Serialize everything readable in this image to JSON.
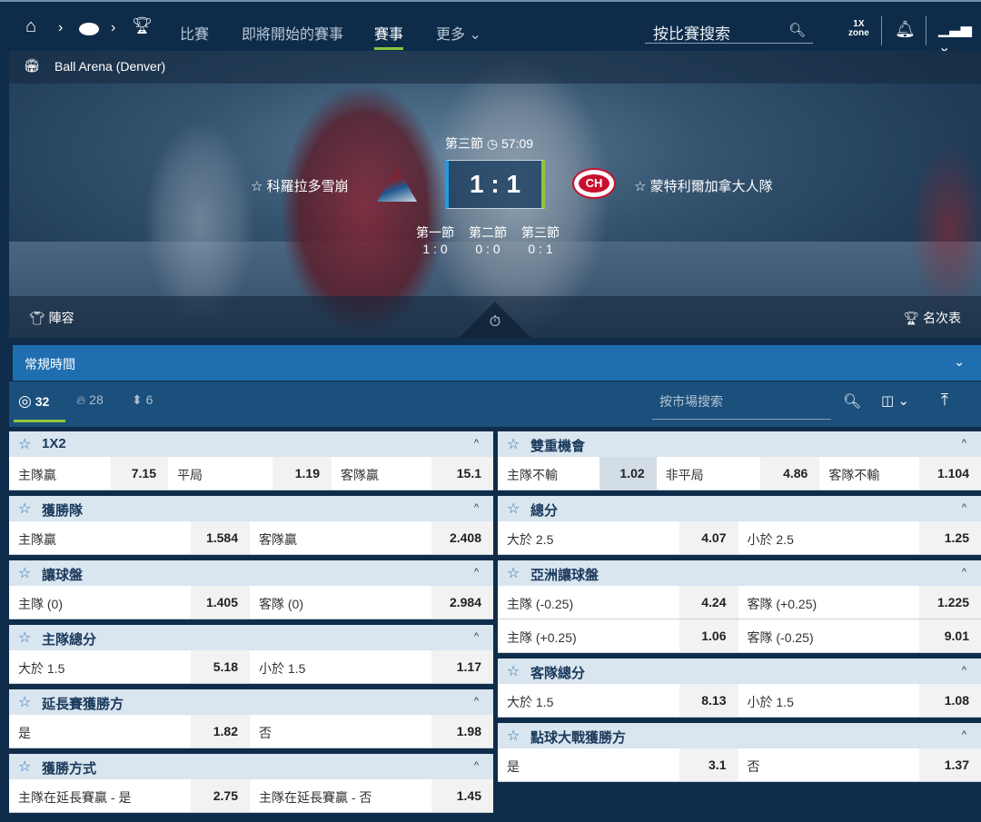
{
  "header": {
    "nav": [
      "比賽",
      "即將開始的賽事",
      "賽事",
      "更多"
    ],
    "active": "賽事",
    "search_placeholder": "按比賽搜索",
    "zone_top": "1X",
    "zone_bottom": "zone"
  },
  "match": {
    "venue": "Ball Arena (Denver)",
    "period": "第三節",
    "clock": "57:09",
    "score": "1 : 1",
    "home": "科羅拉多雪崩",
    "away": "蒙特利爾加拿大人隊",
    "periods": [
      {
        "label": "第一節",
        "score": "1 : 0"
      },
      {
        "label": "第二節",
        "score": "0 : 0"
      },
      {
        "label": "第三節",
        "score": "0 : 1"
      }
    ],
    "lineup": "陣容",
    "standings": "名次表"
  },
  "regular_time": "常規時間",
  "filters": {
    "all": "32",
    "hot": "28",
    "updown": "6",
    "search_placeholder": "按市場搜索"
  },
  "colors": {
    "accent": "#8dc63f",
    "primary": "#1f6fb0",
    "home": "#1e9be8"
  },
  "markets_left": [
    {
      "title": "1X2",
      "rows": [
        [
          [
            "主隊贏",
            "7.15"
          ],
          [
            "平局",
            "1.19"
          ],
          [
            "客隊贏",
            "15.1"
          ]
        ]
      ]
    },
    {
      "title": "獲勝隊",
      "rows": [
        [
          [
            "主隊贏",
            "1.584"
          ],
          [
            "客隊贏",
            "2.408"
          ]
        ]
      ]
    },
    {
      "title": "讓球盤",
      "rows": [
        [
          [
            "主隊 (0)",
            "1.405"
          ],
          [
            "客隊 (0)",
            "2.984"
          ]
        ]
      ]
    },
    {
      "title": "主隊總分",
      "rows": [
        [
          [
            "大於 1.5",
            "5.18"
          ],
          [
            "小於 1.5",
            "1.17"
          ]
        ]
      ]
    },
    {
      "title": "延長賽獲勝方",
      "rows": [
        [
          [
            "是",
            "1.82"
          ],
          [
            "否",
            "1.98"
          ]
        ]
      ]
    },
    {
      "title": "獲勝方式",
      "rows": [
        [
          [
            "主隊在延長賽贏 - 是",
            "2.75"
          ],
          [
            "主隊在延長賽贏 - 否",
            "1.45"
          ]
        ]
      ]
    }
  ],
  "markets_right": [
    {
      "title": "雙重機會",
      "rows": [
        [
          [
            "主隊不輸",
            "1.02"
          ],
          [
            "非平局",
            "4.86"
          ],
          [
            "客隊不輸",
            "1.104"
          ]
        ]
      ]
    },
    {
      "title": "總分",
      "rows": [
        [
          [
            "大於 2.5",
            "4.07"
          ],
          [
            "小於 2.5",
            "1.25"
          ]
        ]
      ]
    },
    {
      "title": "亞洲讓球盤",
      "rows": [
        [
          [
            "主隊 (-0.25)",
            "4.24"
          ],
          [
            "客隊 (+0.25)",
            "1.225"
          ]
        ],
        [
          [
            "主隊 (+0.25)",
            "1.06"
          ],
          [
            "客隊 (-0.25)",
            "9.01"
          ]
        ]
      ]
    },
    {
      "title": "客隊總分",
      "rows": [
        [
          [
            "大於 1.5",
            "8.13"
          ],
          [
            "小於 1.5",
            "1.08"
          ]
        ]
      ]
    },
    {
      "title": "點球大戰獲勝方",
      "rows": [
        [
          [
            "是",
            "3.1"
          ],
          [
            "否",
            "1.37"
          ]
        ]
      ]
    }
  ]
}
